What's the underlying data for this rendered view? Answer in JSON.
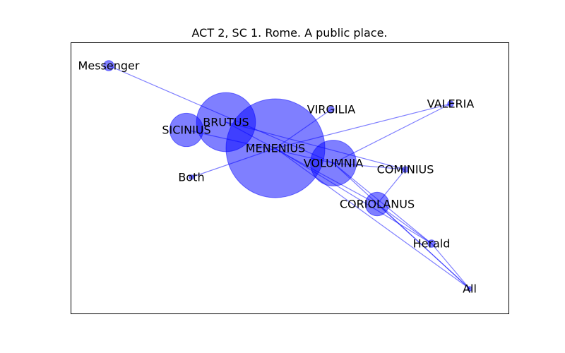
{
  "title": "ACT 2, SC 1. Rome. A public place.",
  "colors": {
    "node_fill": "#0000ff",
    "edge": "#0000ff",
    "frame": "#000000"
  },
  "nodes": [
    {
      "id": "menenius",
      "label": "MENENIUS",
      "weight": 14.0
    },
    {
      "id": "brutus",
      "label": "BRUTUS",
      "weight": 5.0
    },
    {
      "id": "sicinius",
      "label": "SICINIUS",
      "weight": 1.6
    },
    {
      "id": "volumnia",
      "label": "VOLUMNIA",
      "weight": 3.0
    },
    {
      "id": "coriolanus",
      "label": "CORIOLANUS",
      "weight": 0.8
    },
    {
      "id": "virgilia",
      "label": "VIRGILIA",
      "weight": 0.05
    },
    {
      "id": "valeria",
      "label": "VALERIA",
      "weight": 0.05
    },
    {
      "id": "cominius",
      "label": "COMINIUS",
      "weight": 0.05
    },
    {
      "id": "messenger",
      "label": "Messenger",
      "weight": 0.15
    },
    {
      "id": "both",
      "label": "Both",
      "weight": 0.03
    },
    {
      "id": "herald",
      "label": "Herald",
      "weight": 0.08
    },
    {
      "id": "all",
      "label": "All",
      "weight": 0.03
    }
  ],
  "edges": [
    [
      "messenger",
      "volumnia"
    ],
    [
      "sicinius",
      "volumnia"
    ],
    [
      "brutus",
      "cominius"
    ],
    [
      "brutus",
      "coriolanus"
    ],
    [
      "menenius",
      "all"
    ],
    [
      "menenius",
      "herald"
    ],
    [
      "menenius",
      "virgilia"
    ],
    [
      "menenius",
      "both"
    ],
    [
      "menenius",
      "valeria"
    ],
    [
      "volumnia",
      "valeria"
    ],
    [
      "volumnia",
      "cominius"
    ],
    [
      "volumnia",
      "herald"
    ],
    [
      "volumnia",
      "all"
    ],
    [
      "coriolanus",
      "cominius"
    ],
    [
      "coriolanus",
      "herald"
    ],
    [
      "coriolanus",
      "all"
    ],
    [
      "herald",
      "all"
    ]
  ]
}
